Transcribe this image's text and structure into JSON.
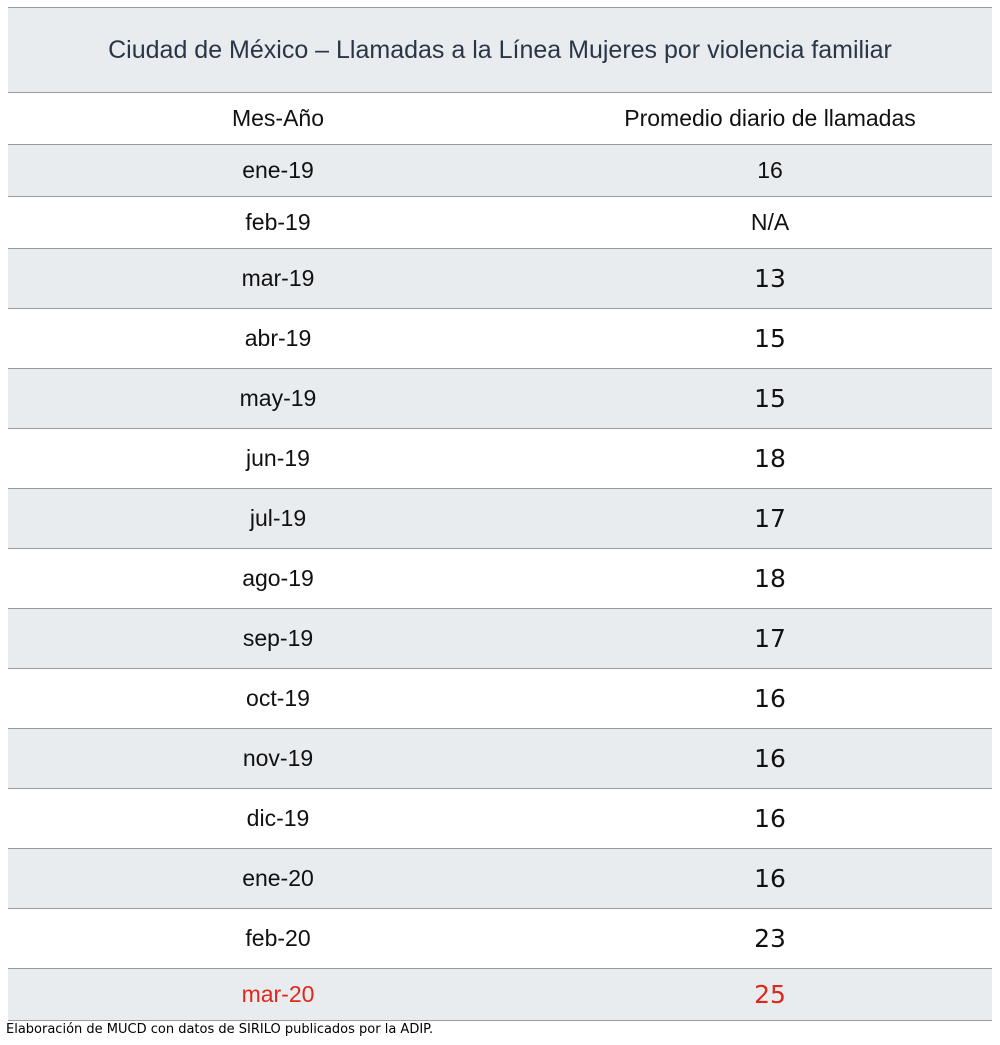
{
  "table": {
    "title": "Ciudad de México – Llamadas a la Línea Mujeres por violencia familiar",
    "headers": [
      "Mes-Año",
      "Promedio diario de llamadas"
    ],
    "rows": [
      {
        "month": "ene-19",
        "value": "16"
      },
      {
        "month": "feb-19",
        "value": "N/A"
      },
      {
        "month": "mar-19",
        "value": "13"
      },
      {
        "month": "abr-19",
        "value": "15"
      },
      {
        "month": "may-19",
        "value": "15"
      },
      {
        "month": "jun-19",
        "value": "18"
      },
      {
        "month": "jul-19",
        "value": "17"
      },
      {
        "month": "ago-19",
        "value": "18"
      },
      {
        "month": "sep-19",
        "value": "17"
      },
      {
        "month": "oct-19",
        "value": "16"
      },
      {
        "month": "nov-19",
        "value": "16"
      },
      {
        "month": "dic-19",
        "value": "16"
      },
      {
        "month": "ene-20",
        "value": "16"
      },
      {
        "month": "feb-20",
        "value": "23"
      },
      {
        "month": "mar-20",
        "value": "25"
      }
    ],
    "highlight_color": "#e0271b",
    "shade_color": "#e8ecef"
  },
  "footnote": "Elaboración de MUCD con datos de SIRILO publicados por la ADIP."
}
